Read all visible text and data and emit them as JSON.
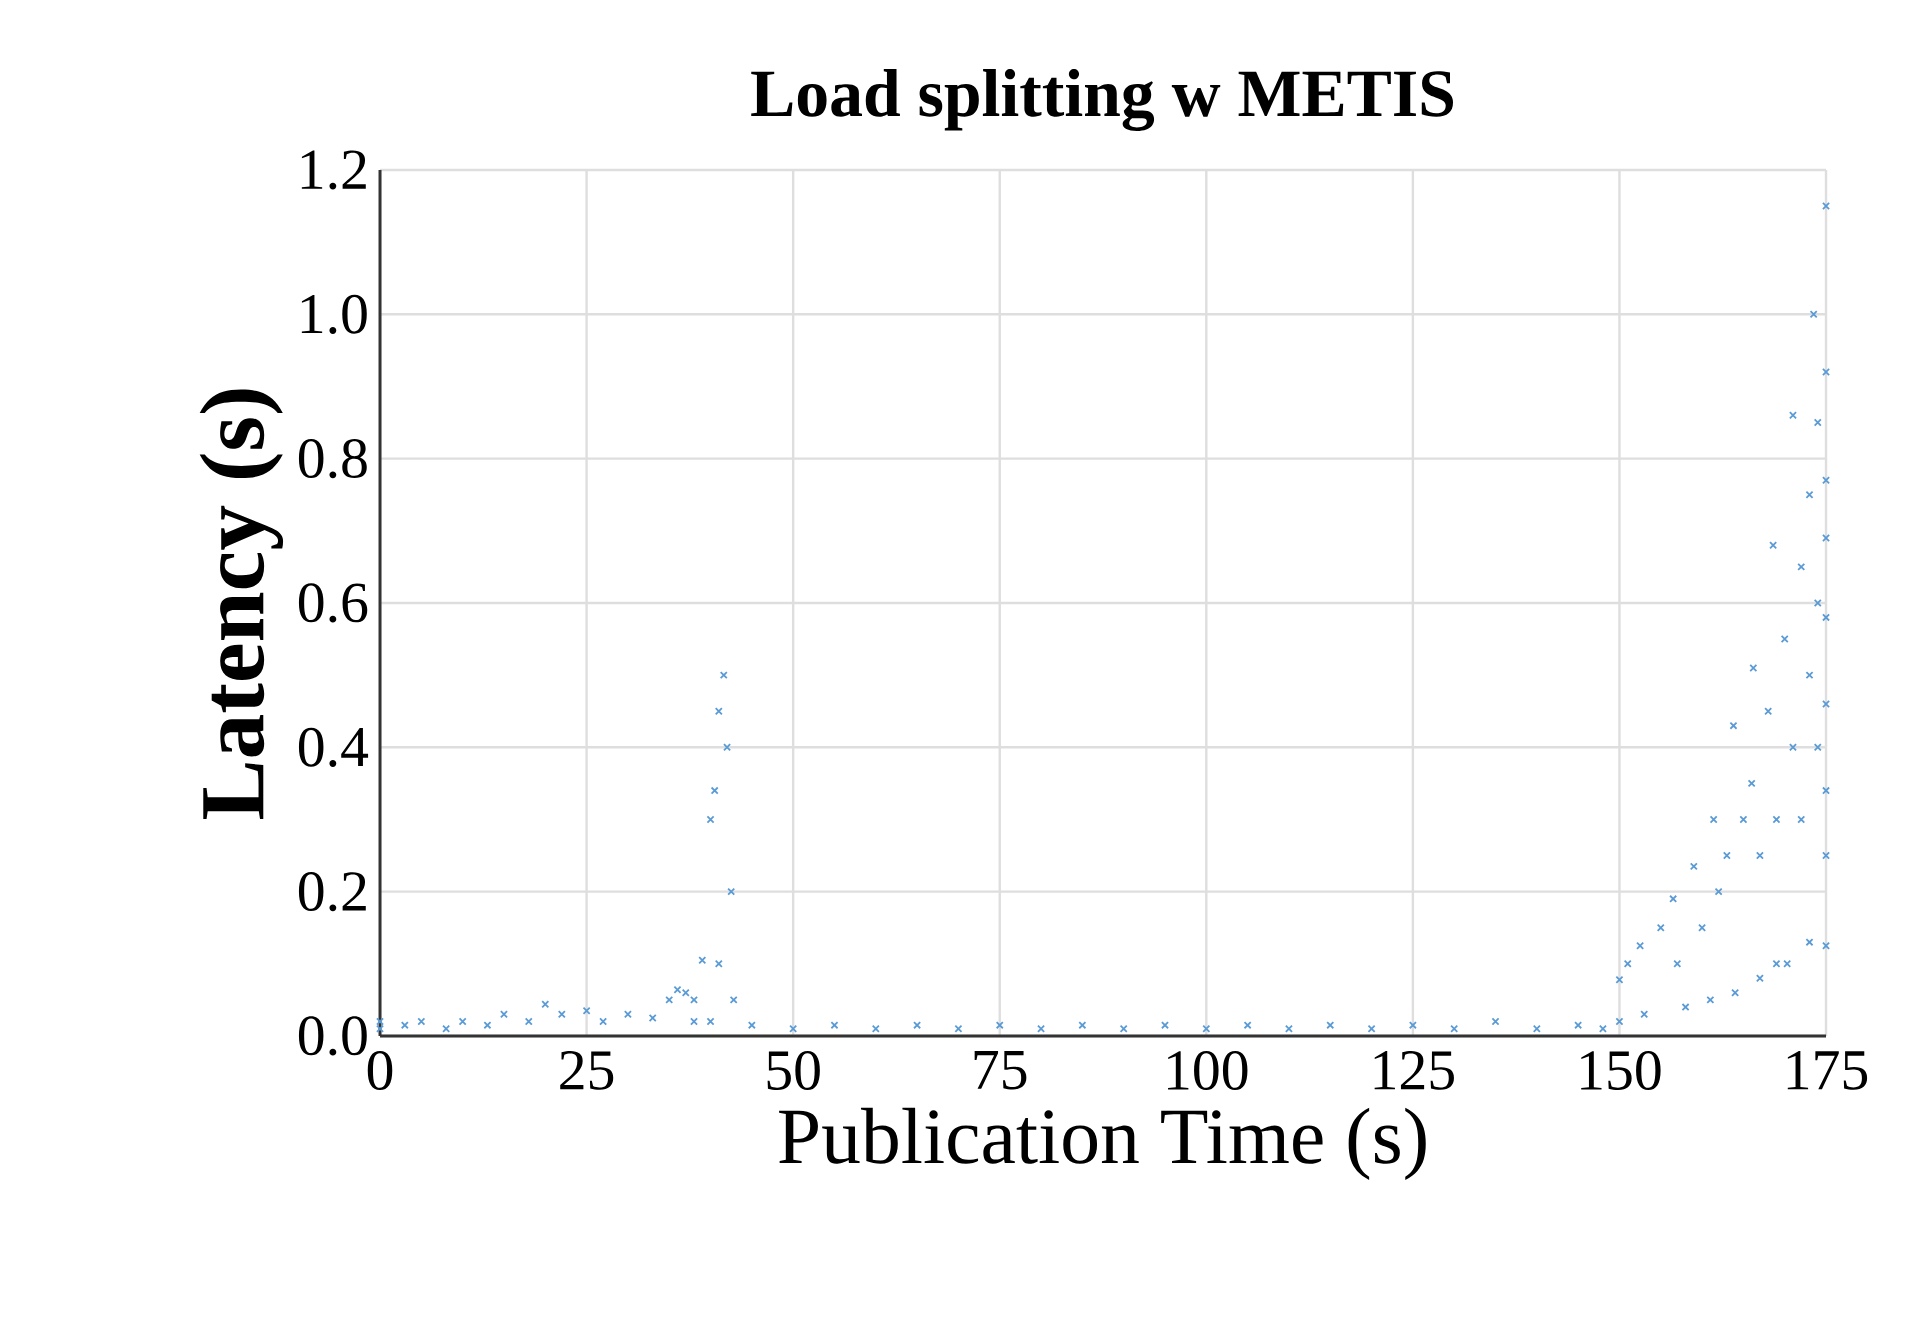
{
  "chart_data": {
    "type": "scatter",
    "title": "Load splitting w METIS",
    "xlabel": "Publication Time (s)",
    "ylabel": "Latency (s)",
    "xlim": [
      0,
      175
    ],
    "ylim": [
      0,
      1.2
    ],
    "xticks": [
      0,
      25,
      50,
      75,
      100,
      125,
      150,
      175
    ],
    "yticks": [
      {
        "value": 0,
        "label": "0.0"
      },
      {
        "value": 0.2,
        "label": "0.2"
      },
      {
        "value": 0.4,
        "label": "0.4"
      },
      {
        "value": 0.6,
        "label": "0.6"
      },
      {
        "value": 0.8,
        "label": "0.8"
      },
      {
        "value": 1,
        "label": "1.0"
      },
      {
        "value": 1.2,
        "label": "1.2"
      }
    ],
    "grid": true,
    "marker": "cross",
    "series": [
      {
        "color": "#5b9bd5",
        "x": [
          0,
          0,
          3,
          5,
          8,
          10,
          13,
          15,
          18,
          20,
          22,
          25,
          27,
          30,
          33,
          35,
          36,
          37,
          38,
          38,
          39,
          40,
          40.5,
          41,
          41.6,
          42,
          42.5,
          42.8,
          41,
          40,
          45,
          50,
          55,
          60,
          65,
          70,
          75,
          80,
          85,
          90,
          95,
          100,
          105,
          110,
          115,
          120,
          125,
          130,
          135,
          140,
          145,
          148,
          150,
          150,
          151,
          152.5,
          153,
          155,
          156.5,
          157,
          158,
          159,
          160,
          161.4,
          161,
          162,
          163.8,
          163,
          164,
          165,
          166.2,
          166,
          167,
          167,
          168.6,
          168,
          169,
          169,
          170,
          171,
          171,
          170.3,
          172,
          172,
          173.5,
          173,
          173,
          173,
          174,
          174,
          174,
          175,
          175,
          175,
          175,
          175,
          175,
          175,
          175,
          175
        ],
        "values": [
          0.01,
          0.02,
          0.015,
          0.02,
          0.01,
          0.02,
          0.015,
          0.03,
          0.02,
          0.044,
          0.03,
          0.035,
          0.02,
          0.03,
          0.025,
          0.05,
          0.064,
          0.06,
          0.05,
          0.02,
          0.105,
          0.3,
          0.34,
          0.45,
          0.5,
          0.4,
          0.2,
          0.05,
          0.1,
          0.02,
          0.015,
          0.01,
          0.015,
          0.01,
          0.015,
          0.01,
          0.015,
          0.01,
          0.015,
          0.01,
          0.015,
          0.01,
          0.015,
          0.01,
          0.015,
          0.01,
          0.015,
          0.01,
          0.02,
          0.01,
          0.015,
          0.01,
          0.078,
          0.02,
          0.1,
          0.125,
          0.03,
          0.15,
          0.19,
          0.1,
          0.04,
          0.235,
          0.15,
          0.3,
          0.05,
          0.2,
          0.43,
          0.25,
          0.06,
          0.3,
          0.51,
          0.35,
          0.08,
          0.25,
          0.68,
          0.45,
          0.3,
          0.1,
          0.55,
          0.86,
          0.4,
          0.1,
          0.65,
          0.3,
          1.0,
          0.75,
          0.5,
          0.13,
          0.85,
          0.6,
          0.4,
          1.15,
          0.92,
          0.77,
          0.69,
          0.58,
          0.46,
          0.34,
          0.25,
          0.125
        ]
      }
    ]
  }
}
